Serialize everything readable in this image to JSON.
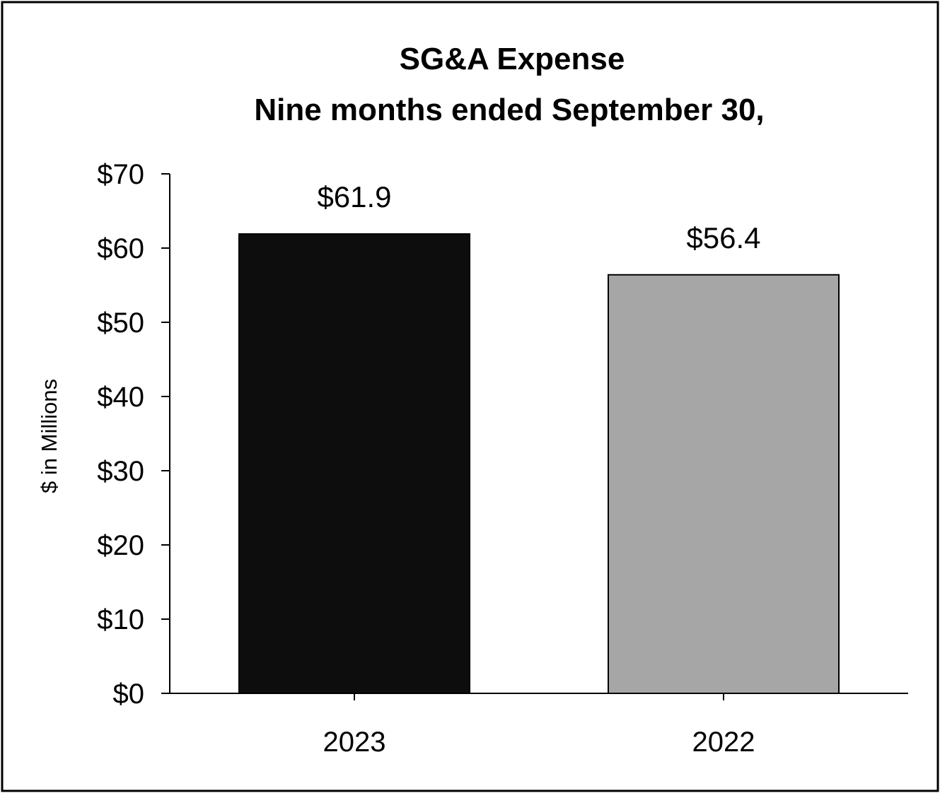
{
  "chart_data": {
    "type": "bar",
    "title": "SG&A Expense",
    "subtitle": "Nine months ended September 30,",
    "ylabel": "$ in Millions",
    "xlabel": "",
    "categories": [
      "2023",
      "2022"
    ],
    "values": [
      61.9,
      56.4
    ],
    "data_labels": [
      "$61.9",
      "$56.4"
    ],
    "bar_colors": [
      "#0d0d0d",
      "#a6a6a6"
    ],
    "ylim": [
      0,
      70
    ],
    "yticks": [
      0,
      10,
      20,
      30,
      40,
      50,
      60,
      70
    ],
    "ytick_labels": [
      "$0",
      "$10",
      "$20",
      "$30",
      "$40",
      "$50",
      "$60",
      "$70"
    ],
    "grid": false,
    "legend": "none"
  }
}
